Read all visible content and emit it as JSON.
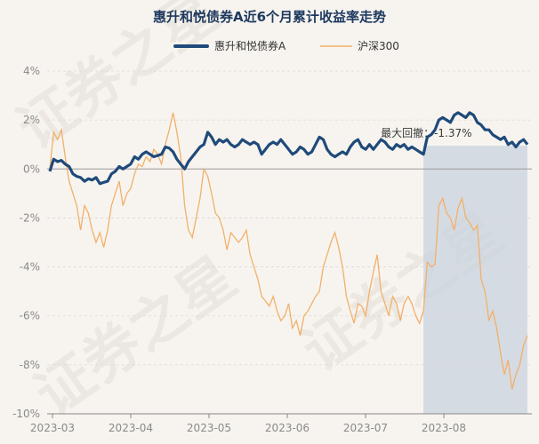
{
  "chart_data": {
    "type": "line",
    "title": "惠升和悦债券A近6个月累计收益率走势",
    "xlabel": "",
    "ylabel": "",
    "ylim": [
      -10,
      4
    ],
    "yticks": [
      "4%",
      "2%",
      "0%",
      "-2%",
      "-4%",
      "-6%",
      "-8%",
      "-10%"
    ],
    "ytick_values": [
      4,
      2,
      0,
      -2,
      -4,
      -6,
      -8,
      -10
    ],
    "xticks": [
      "2023-03",
      "2023-04",
      "2023-05",
      "2023-06",
      "2023-07",
      "2023-08"
    ],
    "grid": true,
    "legend": "top-center",
    "series": [
      {
        "name": "惠升和悦债券A",
        "color": "#1f4a7a",
        "values": [
          -0.1,
          0.4,
          0.3,
          0.35,
          0.2,
          0.1,
          -0.2,
          -0.3,
          -0.35,
          -0.5,
          -0.4,
          -0.45,
          -0.35,
          -0.6,
          -0.55,
          -0.5,
          -0.2,
          -0.1,
          0.1,
          0.0,
          0.1,
          0.2,
          0.5,
          0.4,
          0.6,
          0.7,
          0.6,
          0.5,
          0.55,
          0.6,
          0.9,
          0.85,
          0.7,
          0.4,
          0.2,
          0.0,
          0.3,
          0.5,
          0.7,
          0.9,
          1.0,
          1.5,
          1.3,
          1.0,
          1.2,
          1.1,
          1.2,
          1.0,
          0.9,
          1.0,
          1.2,
          1.1,
          1.0,
          1.1,
          1.0,
          0.6,
          0.8,
          1.0,
          1.1,
          1.0,
          1.2,
          1.0,
          0.8,
          0.6,
          0.7,
          0.9,
          0.8,
          0.6,
          0.7,
          1.0,
          1.3,
          1.2,
          0.8,
          0.6,
          0.5,
          0.6,
          0.7,
          0.6,
          0.9,
          1.1,
          1.2,
          0.9,
          0.8,
          1.0,
          0.8,
          1.0,
          1.2,
          1.1,
          0.9,
          0.8,
          1.0,
          0.9,
          1.0,
          0.8,
          0.9,
          0.8,
          0.7,
          0.6,
          1.3,
          1.4,
          1.6,
          2.0,
          2.1,
          2.0,
          1.9,
          2.2,
          2.3,
          2.2,
          2.1,
          2.3,
          2.2,
          1.9,
          1.8,
          1.6,
          1.6,
          1.4,
          1.3,
          1.2,
          1.3,
          1.0,
          1.1,
          0.9,
          1.1,
          1.2,
          1.0
        ]
      },
      {
        "name": "沪深300",
        "color": "#f2b06a",
        "values": [
          0.0,
          1.5,
          1.2,
          1.6,
          0.5,
          -0.5,
          -1.0,
          -1.5,
          -2.5,
          -1.5,
          -1.8,
          -2.5,
          -3.0,
          -2.6,
          -3.2,
          -2.5,
          -1.5,
          -1.0,
          -0.5,
          -1.5,
          -1.0,
          -0.8,
          -0.2,
          0.2,
          0.1,
          0.5,
          0.3,
          0.8,
          0.6,
          0.2,
          1.0,
          1.6,
          2.3,
          1.5,
          0.5,
          -1.5,
          -2.5,
          -2.8,
          -2.0,
          -1.2,
          0.0,
          -0.3,
          -1.0,
          -1.8,
          -2.0,
          -2.5,
          -3.3,
          -2.6,
          -2.8,
          -3.0,
          -2.8,
          -2.5,
          -3.5,
          -4.0,
          -4.5,
          -5.2,
          -5.4,
          -5.6,
          -5.2,
          -5.8,
          -6.2,
          -6.0,
          -5.5,
          -6.5,
          -6.2,
          -6.8,
          -6.0,
          -5.8,
          -5.5,
          -5.2,
          -5.0,
          -4.0,
          -3.5,
          -3.0,
          -2.6,
          -3.2,
          -4.0,
          -5.2,
          -5.8,
          -6.3,
          -5.5,
          -5.6,
          -6.0,
          -5.0,
          -4.2,
          -3.5,
          -5.0,
          -5.5,
          -6.0,
          -5.2,
          -5.5,
          -6.2,
          -5.5,
          -5.2,
          -5.5,
          -6.0,
          -6.3,
          -5.8,
          -3.8,
          -4.0,
          -3.9,
          -1.5,
          -1.2,
          -1.8,
          -2.0,
          -2.5,
          -1.6,
          -1.2,
          -2.0,
          -2.2,
          -2.5,
          -2.3,
          -4.5,
          -5.0,
          -6.2,
          -5.8,
          -6.5,
          -7.5,
          -8.4,
          -7.8,
          -9.0,
          -8.4,
          -8.0,
          -7.2,
          -6.8
        ]
      }
    ],
    "annotations": [
      {
        "text": "最大回撤：-1.37%",
        "series": "惠升和悦债券A"
      }
    ],
    "drawdown_range": {
      "start_index": 97,
      "end_index": 124
    }
  },
  "watermark": "证券之星"
}
